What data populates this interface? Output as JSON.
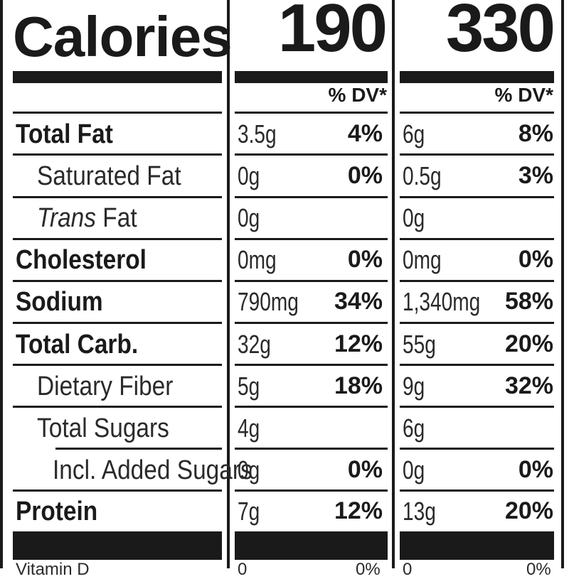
{
  "header": {
    "calories_label": "Calories",
    "col1_calories": "190",
    "col2_calories": "330",
    "dv_label": "% DV*"
  },
  "rows": [
    {
      "label": "Total Fat",
      "c1_amount": "3.5g",
      "c1_dv": "4%",
      "c2_amount": "6g",
      "c2_dv": "8%"
    },
    {
      "label": "Saturated Fat",
      "c1_amount": "0g",
      "c1_dv": "0%",
      "c2_amount": "0.5g",
      "c2_dv": "3%"
    },
    {
      "label_italic": "Trans",
      "label_rest": " Fat",
      "c1_amount": "0g",
      "c1_dv": "",
      "c2_amount": "0g",
      "c2_dv": ""
    },
    {
      "label": "Cholesterol",
      "c1_amount": "0mg",
      "c1_dv": "0%",
      "c2_amount": "0mg",
      "c2_dv": "0%"
    },
    {
      "label": "Sodium",
      "c1_amount": "790mg",
      "c1_dv": "34%",
      "c2_amount": "1,340mg",
      "c2_dv": "58%"
    },
    {
      "label": "Total Carb.",
      "c1_amount": "32g",
      "c1_dv": "12%",
      "c2_amount": "55g",
      "c2_dv": "20%"
    },
    {
      "label": "Dietary Fiber",
      "c1_amount": "5g",
      "c1_dv": "18%",
      "c2_amount": "9g",
      "c2_dv": "32%"
    },
    {
      "label": "Total Sugars",
      "c1_amount": "4g",
      "c1_dv": "",
      "c2_amount": "6g",
      "c2_dv": ""
    },
    {
      "label": "Incl. Added Sugars",
      "c1_amount": "0g",
      "c1_dv": "0%",
      "c2_amount": "0g",
      "c2_dv": "0%"
    },
    {
      "label": "Protein",
      "c1_amount": "7g",
      "c1_dv": "12%",
      "c2_amount": "13g",
      "c2_dv": "20%"
    }
  ],
  "footer": {
    "partial_label": "Vitamin D",
    "c1_partial_amount": "0",
    "c1_partial_dv": "0%",
    "c2_partial_amount": "0",
    "c2_partial_dv": "0%"
  }
}
